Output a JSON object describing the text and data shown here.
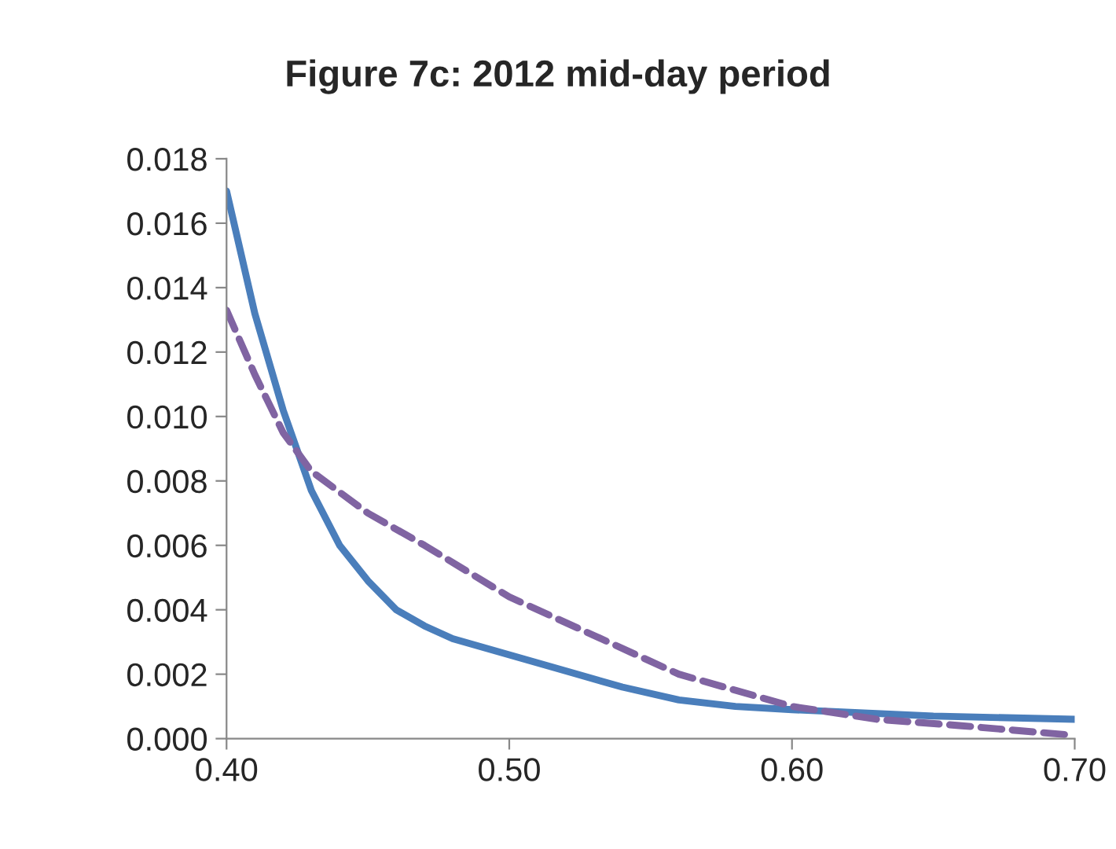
{
  "chart_data": {
    "type": "line",
    "title": "Figure 7c: 2012 mid-day period",
    "xlim": [
      0.4,
      0.7
    ],
    "xticks": [
      {
        "value": 0.4,
        "label": "0.40"
      },
      {
        "value": 0.5,
        "label": "0.50"
      },
      {
        "value": 0.6,
        "label": "0.60"
      },
      {
        "value": 0.7,
        "label": "0.70"
      }
    ],
    "ylim": [
      0,
      0.018
    ],
    "yticks": [
      {
        "value": 0,
        "label": "0.000"
      },
      {
        "value": 0.002,
        "label": "0.002"
      },
      {
        "value": 0.004,
        "label": "0.004"
      },
      {
        "value": 0.006,
        "label": "0.006"
      },
      {
        "value": 0.008,
        "label": "0.008"
      },
      {
        "value": 0.01,
        "label": "0.010"
      },
      {
        "value": 0.012,
        "label": "0.012"
      },
      {
        "value": 0.014,
        "label": "0.014"
      },
      {
        "value": 0.016,
        "label": "0.016"
      },
      {
        "value": 0.018,
        "label": "0.018"
      }
    ],
    "grid": false,
    "legend": false,
    "series": [
      {
        "color": "#4a7ebb",
        "line_style": "solid",
        "x": [
          0.4,
          0.41,
          0.42,
          0.43,
          0.44,
          0.45,
          0.46,
          0.47,
          0.48,
          0.5,
          0.52,
          0.54,
          0.56,
          0.58,
          0.6,
          0.65,
          0.7
        ],
        "values": [
          0.017,
          0.0132,
          0.0102,
          0.0077,
          0.006,
          0.0049,
          0.004,
          0.0035,
          0.0031,
          0.0026,
          0.0021,
          0.0016,
          0.0012,
          0.001,
          0.0009,
          0.0007,
          0.0006
        ]
      },
      {
        "color": "#8064a2",
        "line_style": "dashed",
        "x": [
          0.4,
          0.41,
          0.42,
          0.43,
          0.45,
          0.47,
          0.5,
          0.53,
          0.56,
          0.6,
          0.63,
          0.66,
          0.7
        ],
        "values": [
          0.0133,
          0.0113,
          0.0095,
          0.0083,
          0.007,
          0.006,
          0.0044,
          0.0032,
          0.002,
          0.001,
          0.0006,
          0.0004,
          0.0001
        ]
      }
    ]
  }
}
